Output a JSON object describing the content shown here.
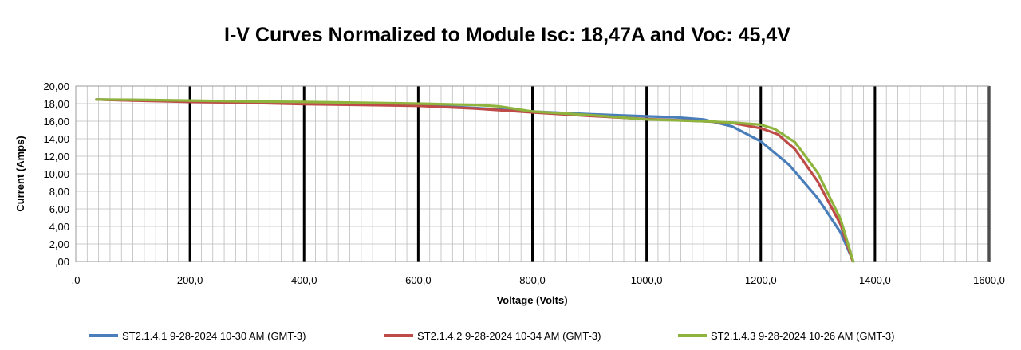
{
  "chart_data": {
    "type": "line",
    "title": "I-V Curves Normalized to Module Isc: 18,47A and Voc: 45,4V",
    "xlabel": "Voltage (Volts)",
    "ylabel": "Current (Amps)",
    "xlim": [
      0,
      1600
    ],
    "ylim": [
      0,
      20
    ],
    "x_ticks": [
      ",0",
      "200,0",
      "400,0",
      "600,0",
      "800,0",
      "1000,0",
      "1200,0",
      "1400,0",
      "1600,0"
    ],
    "y_ticks": [
      "20,00",
      "18,00",
      "16,00",
      "14,00",
      "12,00",
      "10,00",
      "8,00",
      "6,00",
      "4,00",
      "2,00",
      ",00"
    ],
    "grid": true,
    "legend_position": "bottom",
    "series": [
      {
        "name": "ST2.1.4.1 9-28-2024 10-30 AM (GMT-3)",
        "color": "#4a7ebb",
        "points": [
          [
            36,
            18.47
          ],
          [
            100,
            18.4
          ],
          [
            200,
            18.3
          ],
          [
            300,
            18.2
          ],
          [
            400,
            18.1
          ],
          [
            500,
            18.0
          ],
          [
            600,
            17.85
          ],
          [
            700,
            17.5
          ],
          [
            800,
            17.1
          ],
          [
            900,
            16.8
          ],
          [
            1000,
            16.55
          ],
          [
            1050,
            16.45
          ],
          [
            1100,
            16.2
          ],
          [
            1150,
            15.4
          ],
          [
            1200,
            13.7
          ],
          [
            1250,
            11.0
          ],
          [
            1300,
            7.2
          ],
          [
            1340,
            3.3
          ],
          [
            1362,
            0
          ]
        ]
      },
      {
        "name": "ST2.1.4.2 9-28-2024 10-34 AM (GMT-3)",
        "color": "#be4b48",
        "points": [
          [
            36,
            18.47
          ],
          [
            100,
            18.35
          ],
          [
            200,
            18.2
          ],
          [
            300,
            18.1
          ],
          [
            400,
            17.95
          ],
          [
            500,
            17.85
          ],
          [
            600,
            17.75
          ],
          [
            700,
            17.45
          ],
          [
            800,
            17.0
          ],
          [
            900,
            16.6
          ],
          [
            1000,
            16.25
          ],
          [
            1100,
            16.0
          ],
          [
            1150,
            15.8
          ],
          [
            1200,
            15.2
          ],
          [
            1230,
            14.5
          ],
          [
            1260,
            12.8
          ],
          [
            1300,
            9.1
          ],
          [
            1340,
            4.2
          ],
          [
            1360,
            0.2
          ]
        ]
      },
      {
        "name": "ST2.1.4.3 9-28-2024 10-26 AM (GMT-3)",
        "color": "#8eb43d",
        "points": [
          [
            36,
            18.47
          ],
          [
            100,
            18.45
          ],
          [
            200,
            18.35
          ],
          [
            300,
            18.25
          ],
          [
            400,
            18.2
          ],
          [
            500,
            18.1
          ],
          [
            600,
            18.0
          ],
          [
            700,
            17.85
          ],
          [
            740,
            17.7
          ],
          [
            800,
            17.1
          ],
          [
            900,
            16.7
          ],
          [
            1000,
            16.2
          ],
          [
            1100,
            16.0
          ],
          [
            1150,
            15.85
          ],
          [
            1200,
            15.6
          ],
          [
            1225,
            15.1
          ],
          [
            1260,
            13.6
          ],
          [
            1300,
            10.1
          ],
          [
            1340,
            4.8
          ],
          [
            1362,
            0
          ]
        ]
      }
    ]
  }
}
